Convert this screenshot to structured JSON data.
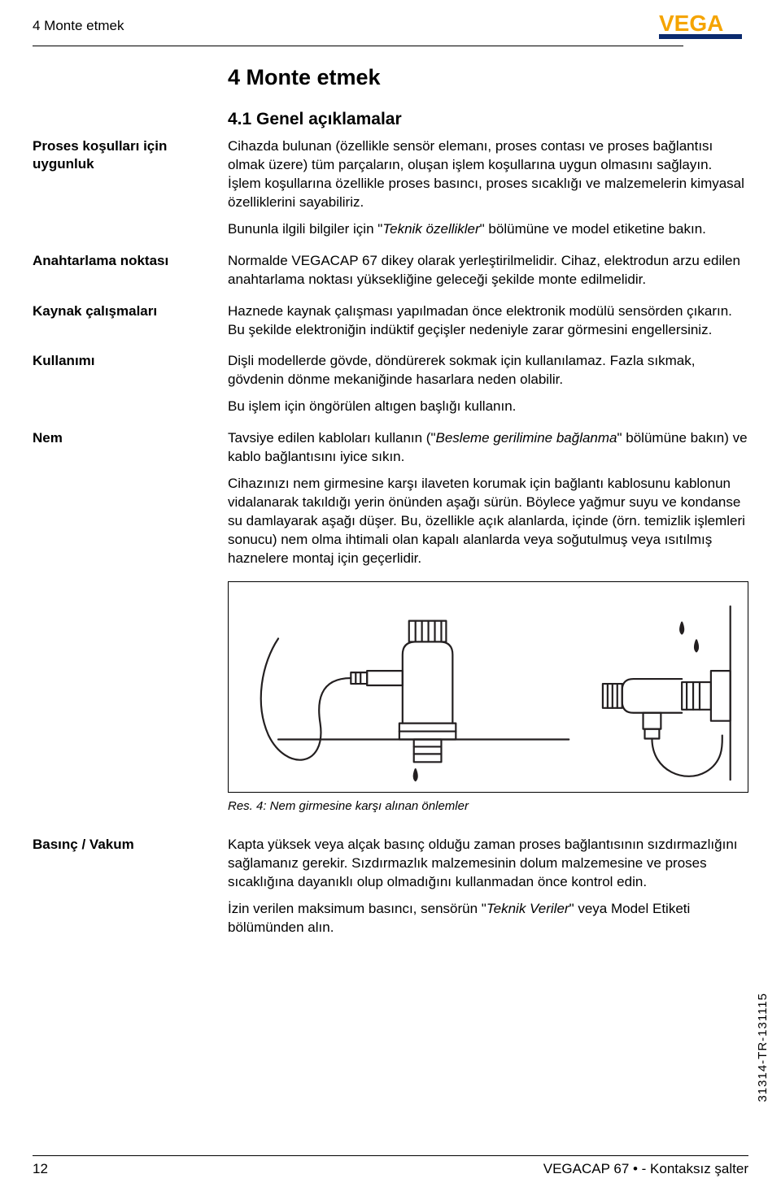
{
  "header": {
    "running_title": "4 Monte etmek"
  },
  "logo": {
    "text": "VEGA",
    "accent_color": "#f5a400",
    "band_color": "#0a2a6e"
  },
  "chapter": {
    "title": "4   Monte etmek"
  },
  "section": {
    "title": "4.1   Genel açıklamalar"
  },
  "blocks": [
    {
      "side": "Proses koşulları için uygunluk",
      "paras": [
        "Cihazda bulunan (özellikle sensör elemanı, proses contası ve proses bağlantısı olmak üzere) tüm parçaların, oluşan işlem koşullarına uygun olmasını sağlayın. İşlem koşullarına özellikle proses basıncı, proses sıcaklığı ve malzemelerin kimyasal özelliklerini sayabiliriz.",
        "Bununla ilgili bilgiler için \"<em>Teknik özellikler</em>\" bölümüne ve model etiketine bakın."
      ]
    },
    {
      "side": "Anahtarlama noktası",
      "paras": [
        "Normalde VEGACAP 67 dikey olarak yerleştirilmelidir. Cihaz, elektrodun arzu edilen anahtarlama noktası yüksekliğine geleceği şekilde monte edilmelidir."
      ]
    },
    {
      "side": "Kaynak çalışmaları",
      "paras": [
        "Haznede kaynak çalışması yapılmadan önce elektronik modülü sensörden çıkarın. Bu şekilde elektroniğin indüktif geçişler nedeniyle zarar görmesini engellersiniz."
      ]
    },
    {
      "side": "Kullanımı",
      "paras": [
        "Dişli modellerde gövde, döndürerek sokmak için kullanılamaz. Fazla sıkmak, gövdenin dönme mekaniğinde hasarlara neden olabilir.",
        "Bu işlem için öngörülen altıgen başlığı kullanın."
      ]
    },
    {
      "side": "Nem",
      "paras": [
        "Tavsiye edilen kabloları kullanın (\"<em>Besleme gerilimine bağlanma</em>\" bölümüne bakın) ve kablo bağlantısını iyice sıkın.",
        "Cihazınızı nem girmesine karşı ilaveten korumak için bağlantı kablosunu kablonun vidalanarak takıldığı yerin önünden aşağı sürün. Böylece yağmur suyu ve kondanse su damlayarak aşağı düşer. Bu, özellikle açık alanlarda, içinde (örn. temizlik işlemleri sonucu) nem olma ihtimali olan kapalı alanlarda veya soğutulmuş veya ısıtılmış haznelere montaj için geçerlidir."
      ]
    }
  ],
  "figure": {
    "caption": "Res. 4: Nem girmesine karşı alınan önlemler",
    "stroke": "#231f20",
    "bg": "#ffffff"
  },
  "after_figure": {
    "side": "Basınç / Vakum",
    "paras": [
      "Kapta yüksek veya alçak basınç olduğu zaman proses bağlantısının sızdırmazlığını sağlamanız gerekir. Sızdırmazlık malzemesinin dolum malzemesine ve proses sıcaklığına dayanıklı olup olmadığını kullanmadan önce kontrol edin.",
      "İzin verilen maksimum basıncı, sensörün \"<em>Teknik Veriler</em>\" veya Model Etiketi bölümünden alın."
    ]
  },
  "footer": {
    "page": "12",
    "product": "VEGACAP 67 • - Kontaksız şalter"
  },
  "doc_id": "31314-TR-131115"
}
